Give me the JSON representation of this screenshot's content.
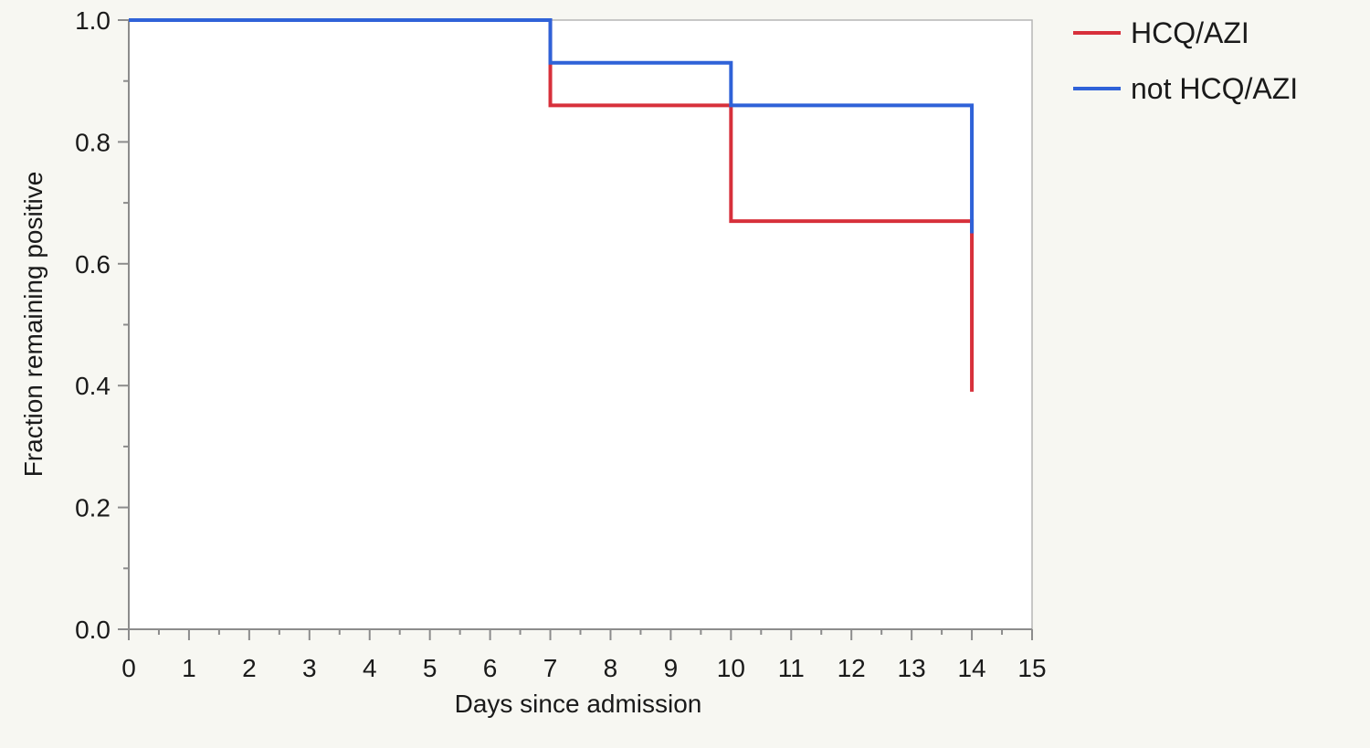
{
  "chart_data": {
    "type": "line",
    "step": true,
    "xlabel": "Days since admission",
    "ylabel": "Fraction remaining positive",
    "xlim": [
      0,
      15
    ],
    "ylim": [
      0,
      1
    ],
    "x_ticks": [
      0,
      1,
      2,
      3,
      4,
      5,
      6,
      7,
      8,
      9,
      10,
      11,
      12,
      13,
      14,
      15
    ],
    "x_tick_labels": [
      "0",
      "1",
      "2",
      "3",
      "4",
      "5",
      "6",
      "7",
      "8",
      "9",
      "10",
      "11",
      "12",
      "13",
      "14",
      "15"
    ],
    "y_ticks": [
      0,
      0.2,
      0.4,
      0.6,
      0.8,
      1.0
    ],
    "y_tick_labels": [
      "0.0",
      "0.2",
      "0.4",
      "0.6",
      "0.8",
      "1.0"
    ],
    "grid": false,
    "legend_position": "top-right, outside plot",
    "series": [
      {
        "name": "HCQ/AZI",
        "color": "#d7303b",
        "x": [
          0,
          7,
          10,
          14,
          14
        ],
        "y": [
          1.0,
          0.86,
          0.67,
          0.67,
          0.39
        ]
      },
      {
        "name": "not HCQ/AZI",
        "color": "#2f62d8",
        "x": [
          0,
          7,
          10,
          14,
          14
        ],
        "y": [
          1.0,
          0.93,
          0.86,
          0.86,
          0.65
        ]
      }
    ]
  }
}
